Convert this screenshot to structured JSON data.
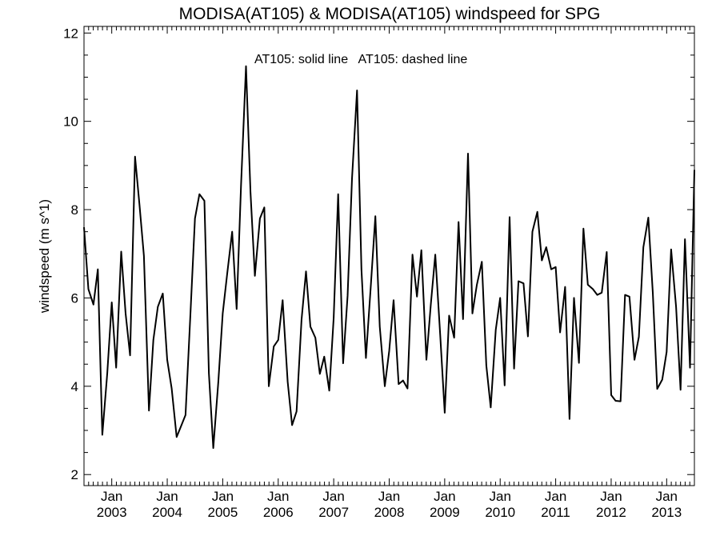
{
  "chart_data": {
    "type": "line",
    "title": "MODISA(AT105) & MODISA(AT105)  windspeed for SPG",
    "annotation": "AT105: solid line   AT105: dashed line",
    "xlabel": "",
    "ylabel": "windspeed (m s^1)",
    "ylim": [
      1.75,
      12.15
    ],
    "xlim": [
      2002.5,
      2013.5
    ],
    "yticks": [
      2,
      4,
      6,
      8,
      10,
      12
    ],
    "xtick_month": "Jan",
    "xtick_years": [
      "2003",
      "2004",
      "2005",
      "2006",
      "2007",
      "2008",
      "2009",
      "2010",
      "2011",
      "2012",
      "2013"
    ],
    "grid": false,
    "series": [
      {
        "style": "solid",
        "x": [
          2002.5,
          2002.58,
          2002.67,
          2002.75,
          2002.83,
          2002.92,
          2003.0,
          2003.08,
          2003.17,
          2003.25,
          2003.33,
          2003.42,
          2003.5,
          2003.58,
          2003.67,
          2003.75,
          2003.83,
          2003.92,
          2004.0,
          2004.08,
          2004.17,
          2004.25,
          2004.33,
          2004.42,
          2004.5,
          2004.58,
          2004.67,
          2004.75,
          2004.83,
          2004.92,
          2005.0,
          2005.08,
          2005.17,
          2005.25,
          2005.33,
          2005.42,
          2005.5,
          2005.58,
          2005.67,
          2005.75,
          2005.83,
          2005.92,
          2006.0,
          2006.08,
          2006.17,
          2006.25,
          2006.33,
          2006.42,
          2006.5,
          2006.58,
          2006.67,
          2006.75,
          2006.83,
          2006.92,
          2007.0,
          2007.08,
          2007.17,
          2007.25,
          2007.33,
          2007.42,
          2007.5,
          2007.58,
          2007.67,
          2007.75,
          2007.83,
          2007.92,
          2008.0,
          2008.08,
          2008.17,
          2008.25,
          2008.33,
          2008.42,
          2008.5,
          2008.58,
          2008.67,
          2008.75,
          2008.83,
          2008.92,
          2009.0,
          2009.08,
          2009.17,
          2009.25,
          2009.33,
          2009.42,
          2009.5,
          2009.58,
          2009.67,
          2009.75,
          2009.83,
          2009.92,
          2010.0,
          2010.08,
          2010.17,
          2010.25,
          2010.33,
          2010.42,
          2010.5,
          2010.58,
          2010.67,
          2010.75,
          2010.83,
          2010.92,
          2011.0,
          2011.08,
          2011.17,
          2011.25,
          2011.33,
          2011.42,
          2011.5,
          2011.58,
          2011.67,
          2011.75,
          2011.83,
          2011.92,
          2012.0,
          2012.08,
          2012.17,
          2012.25,
          2012.33,
          2012.42,
          2012.5,
          2012.58,
          2012.67,
          2012.75,
          2012.83,
          2012.92,
          2013.0,
          2013.08,
          2013.17,
          2013.25,
          2013.33,
          2013.42,
          2013.5
        ],
        "y": [
          7.6,
          6.2,
          5.85,
          6.65,
          2.9,
          4.3,
          5.9,
          4.42,
          7.05,
          5.65,
          4.7,
          9.2,
          8.1,
          6.95,
          3.45,
          5.05,
          5.8,
          6.1,
          4.6,
          3.95,
          2.85,
          3.1,
          3.35,
          5.7,
          7.8,
          8.35,
          8.2,
          4.3,
          2.6,
          4.1,
          5.65,
          6.55,
          7.5,
          5.75,
          8.55,
          11.25,
          8.4,
          6.5,
          7.8,
          8.05,
          4.0,
          4.9,
          5.05,
          5.95,
          4.1,
          3.12,
          3.43,
          5.5,
          6.6,
          5.35,
          5.1,
          4.28,
          4.67,
          3.9,
          5.55,
          8.35,
          4.52,
          6.05,
          8.7,
          10.7,
          6.65,
          4.64,
          6.3,
          7.85,
          5.35,
          4.0,
          4.8,
          5.95,
          4.05,
          4.13,
          3.95,
          6.98,
          6.03,
          7.08,
          4.6,
          5.85,
          6.98,
          5.15,
          3.4,
          5.6,
          5.1,
          7.72,
          5.52,
          9.27,
          5.65,
          6.3,
          6.82,
          4.47,
          3.52,
          5.28,
          6.0,
          4.02,
          7.83,
          4.4,
          6.38,
          6.33,
          5.13,
          7.5,
          7.95,
          6.85,
          7.15,
          6.65,
          6.7,
          5.22,
          6.25,
          3.26,
          6.0,
          4.53,
          7.57,
          6.3,
          6.2,
          6.07,
          6.12,
          7.04,
          3.8,
          3.67,
          3.66,
          6.07,
          6.03,
          4.6,
          5.12,
          7.15,
          7.82,
          6.12,
          3.94,
          4.15,
          4.78,
          7.1,
          5.8,
          3.92,
          7.33,
          4.42,
          8.9
        ]
      }
    ]
  }
}
